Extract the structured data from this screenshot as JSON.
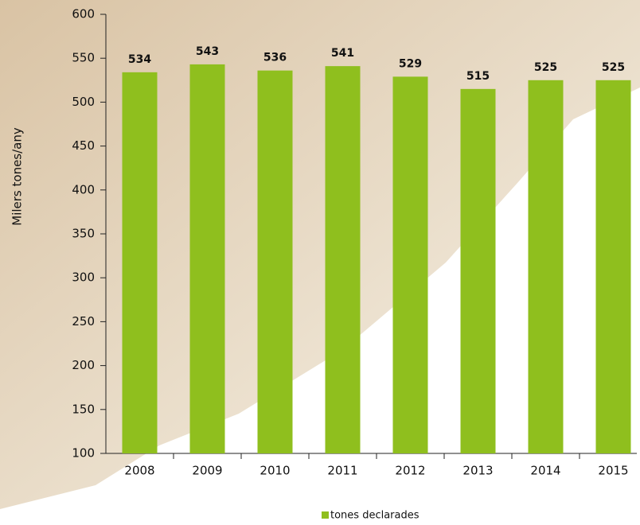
{
  "chart_data": {
    "type": "bar",
    "y_label": "Milers tones/any",
    "categories": [
      "2008",
      "2009",
      "2010",
      "2011",
      "2012",
      "2013",
      "2014",
      "2015"
    ],
    "series": [
      {
        "name": "tones declarades",
        "color": "#8fbf1e",
        "values": [
          534,
          543,
          536,
          541,
          529,
          515,
          525,
          525
        ]
      }
    ],
    "ylim": [
      100,
      600
    ],
    "yticks": [
      100,
      150,
      200,
      250,
      300,
      350,
      400,
      450,
      500,
      550,
      600
    ],
    "legend": "bottom"
  }
}
